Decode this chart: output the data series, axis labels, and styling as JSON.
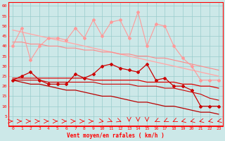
{
  "xlabel": "Vent moyen/en rafales ( km/h )",
  "background_color": "#cce8e8",
  "grid_color": "#99cccc",
  "x": [
    0,
    1,
    2,
    3,
    4,
    5,
    6,
    7,
    8,
    9,
    10,
    11,
    12,
    13,
    14,
    15,
    16,
    17,
    18,
    19,
    20,
    21,
    22,
    23
  ],
  "line_pink_jagged": [
    40,
    49,
    33,
    40,
    44,
    44,
    43,
    49,
    44,
    53,
    45,
    52,
    53,
    44,
    57,
    40,
    51,
    50,
    40,
    34,
    30,
    23,
    23,
    23
  ],
  "line_pink_trend1": [
    48,
    47,
    46,
    45,
    44,
    43,
    42,
    41,
    40,
    39,
    38,
    37,
    36,
    35,
    34,
    33,
    32,
    31,
    30,
    29,
    28,
    27,
    26,
    25
  ],
  "line_pink_trend2": [
    42,
    42,
    41,
    41,
    40,
    40,
    39,
    39,
    38,
    38,
    37,
    37,
    36,
    36,
    35,
    35,
    34,
    34,
    33,
    32,
    31,
    30,
    29,
    28
  ],
  "line_red_jagged": [
    23,
    25,
    27,
    23,
    21,
    21,
    21,
    26,
    24,
    26,
    30,
    31,
    29,
    28,
    27,
    31,
    23,
    24,
    20,
    20,
    18,
    10,
    10,
    10
  ],
  "line_red_trend1": [
    24,
    24,
    24,
    24,
    24,
    24,
    24,
    24,
    24,
    23,
    23,
    23,
    23,
    23,
    23,
    22,
    22,
    22,
    22,
    21,
    21,
    20,
    20,
    19
  ],
  "line_red_trend2": [
    23,
    23,
    23,
    23,
    22,
    22,
    22,
    22,
    22,
    22,
    21,
    21,
    21,
    21,
    20,
    20,
    20,
    19,
    19,
    18,
    17,
    16,
    14,
    13
  ],
  "line_dark_trend": [
    23,
    22,
    21,
    21,
    20,
    19,
    18,
    18,
    17,
    16,
    15,
    15,
    14,
    13,
    12,
    12,
    11,
    10,
    10,
    9,
    8,
    7,
    7,
    6
  ],
  "ylim": [
    0,
    62
  ],
  "yticks": [
    5,
    10,
    15,
    20,
    25,
    30,
    35,
    40,
    45,
    50,
    55,
    60
  ],
  "fig_width": 3.2,
  "fig_height": 2.0,
  "dpi": 100
}
